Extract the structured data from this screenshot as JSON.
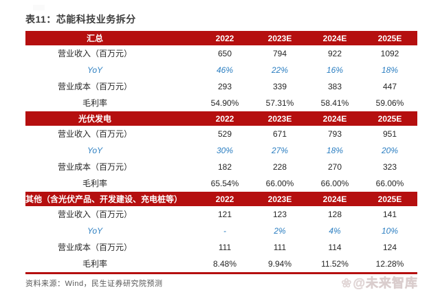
{
  "title": "表11：芯能科技业务拆分",
  "columns": [
    "2022",
    "2023E",
    "2024E",
    "2025E"
  ],
  "sections": [
    {
      "header": "汇总",
      "rows": [
        {
          "label": "营业收入（百万元）",
          "values": [
            "650",
            "794",
            "922",
            "1092"
          ]
        },
        {
          "label": "YoY",
          "values": [
            "46%",
            "22%",
            "16%",
            "18%"
          ]
        },
        {
          "label": "营业成本（百万元）",
          "values": [
            "293",
            "339",
            "383",
            "447"
          ]
        },
        {
          "label": "毛利率",
          "values": [
            "54.90%",
            "57.31%",
            "58.41%",
            "59.06%"
          ]
        }
      ]
    },
    {
      "header": "光伏发电",
      "rows": [
        {
          "label": "营业收入（百万元）",
          "values": [
            "529",
            "671",
            "793",
            "951"
          ]
        },
        {
          "label": "YoY",
          "values": [
            "30%",
            "27%",
            "18%",
            "20%"
          ]
        },
        {
          "label": "营业成本（百万元）",
          "values": [
            "182",
            "228",
            "270",
            "323"
          ]
        },
        {
          "label": "毛利率",
          "values": [
            "65.54%",
            "66.00%",
            "66.00%",
            "66.00%"
          ]
        }
      ]
    },
    {
      "header": "其他（含光伏产品、开发建设、充电桩等）",
      "rows": [
        {
          "label": "营业收入（百万元）",
          "values": [
            "121",
            "123",
            "128",
            "141"
          ]
        },
        {
          "label": "YoY",
          "values": [
            "-",
            "2%",
            "4%",
            "10%"
          ]
        },
        {
          "label": "营业成本（百万元）",
          "values": [
            "111",
            "111",
            "114",
            "124"
          ]
        },
        {
          "label": "毛利率",
          "values": [
            "8.48%",
            "9.94%",
            "11.52%",
            "12.28%"
          ]
        }
      ]
    }
  ],
  "footer": {
    "source": "资料来源：Wind，民生证券研究院预测",
    "watermark_icon": "❀",
    "watermark_text": "@未来智库"
  },
  "colors": {
    "header_red": "#b50f0f",
    "yoy_blue": "#2b7ec1",
    "title_gray": "#3d3d3d",
    "body_text": "#262626",
    "source_gray": "#565656",
    "watermark_gray": "#e6dcdc"
  }
}
